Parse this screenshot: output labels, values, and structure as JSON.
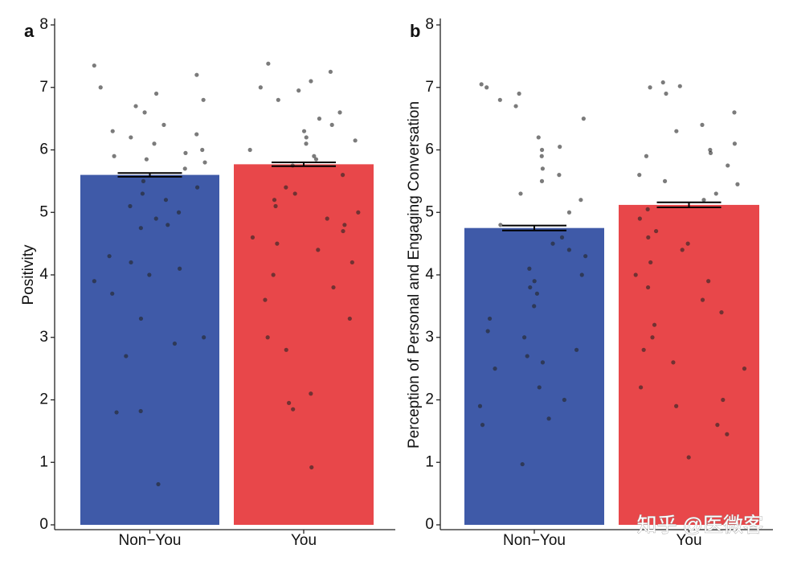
{
  "chart_data": [
    {
      "type": "bar",
      "panel_label": "a",
      "ylabel": "Positivity",
      "categories": [
        "Non−You",
        "You"
      ],
      "values": [
        5.6,
        5.77
      ],
      "errors": [
        0.03,
        0.03
      ],
      "colors": [
        "#3f5aa8",
        "#e8474a"
      ],
      "ylim": [
        0,
        8
      ],
      "yticks": [
        0,
        1,
        2,
        3,
        4,
        5,
        6,
        7,
        8
      ],
      "points": [
        [
          7.35,
          7.2,
          7.0,
          6.9,
          6.7,
          6.6,
          6.4,
          6.3,
          6.2,
          6.1,
          6.0,
          5.95,
          5.9,
          5.8,
          5.7,
          5.5,
          5.4,
          5.3,
          5.2,
          5.1,
          5.0,
          4.9,
          4.8,
          4.75,
          4.3,
          4.2,
          4.0,
          3.9,
          3.7,
          3.3,
          3.0,
          2.9,
          2.7,
          1.82,
          1.8,
          0.65,
          6.8,
          6.25,
          5.85,
          4.1
        ],
        [
          7.38,
          7.25,
          7.1,
          6.95,
          6.8,
          6.6,
          6.4,
          6.3,
          6.2,
          6.1,
          6.0,
          5.9,
          5.85,
          5.75,
          5.6,
          5.4,
          5.3,
          5.2,
          5.0,
          4.9,
          4.8,
          4.7,
          4.6,
          4.4,
          4.2,
          4.0,
          3.8,
          3.6,
          3.3,
          3.0,
          2.8,
          2.1,
          1.95,
          1.85,
          0.92,
          7.0,
          6.5,
          6.15,
          5.1,
          4.5
        ]
      ]
    },
    {
      "type": "bar",
      "panel_label": "b",
      "ylabel": "Perception of Personal and Engaging Conversation",
      "categories": [
        "Non−You",
        "You"
      ],
      "values": [
        4.75,
        5.12
      ],
      "errors": [
        0.04,
        0.04
      ],
      "colors": [
        "#3f5aa8",
        "#e8474a"
      ],
      "ylim": [
        0,
        8
      ],
      "yticks": [
        0,
        1,
        2,
        3,
        4,
        5,
        6,
        7,
        8
      ],
      "points": [
        [
          7.05,
          7.0,
          6.9,
          6.7,
          6.5,
          6.2,
          6.0,
          5.9,
          5.7,
          5.5,
          5.3,
          5.2,
          5.0,
          4.8,
          4.6,
          4.5,
          4.3,
          4.1,
          4.0,
          3.9,
          3.7,
          3.5,
          3.3,
          3.1,
          3.0,
          2.8,
          2.6,
          2.5,
          2.2,
          2.0,
          1.9,
          1.7,
          1.6,
          0.97,
          6.8,
          6.05,
          5.6,
          4.4,
          3.8,
          2.7
        ],
        [
          7.08,
          7.02,
          6.9,
          6.6,
          6.4,
          6.1,
          6.0,
          5.9,
          5.75,
          5.6,
          5.5,
          5.3,
          5.2,
          5.05,
          4.9,
          4.7,
          4.5,
          4.4,
          4.2,
          4.0,
          3.8,
          3.6,
          3.4,
          3.2,
          3.0,
          2.8,
          2.5,
          2.2,
          2.0,
          1.9,
          1.6,
          1.45,
          1.08,
          7.0,
          6.3,
          5.95,
          5.45,
          4.6,
          3.9,
          2.6
        ]
      ]
    }
  ],
  "watermark": "知乎 @医微客"
}
